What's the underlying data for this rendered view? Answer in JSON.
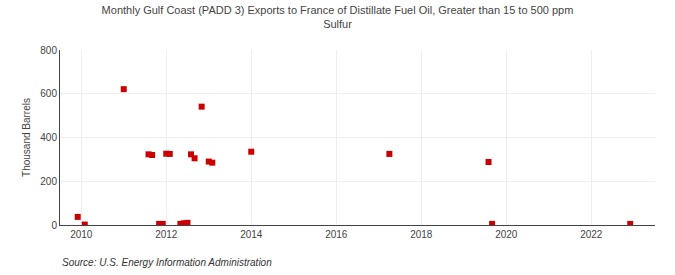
{
  "chart_data": {
    "type": "scatter",
    "title": "Monthly Gulf Coast (PADD 3) Exports to France of Distillate Fuel Oil, Greater than 15 to 500 ppm\nSulfur",
    "ylabel": "Thousand Barrels",
    "annotations": [
      "Source: U.S. Energy Information Administration"
    ],
    "x": [
      2009.917,
      2010.083,
      2011.0,
      2011.583,
      2011.667,
      2011.833,
      2011.917,
      2012.0,
      2012.083,
      2012.333,
      2012.417,
      2012.5,
      2012.583,
      2012.667,
      2012.833,
      2013.0,
      2013.083,
      2014.0,
      2017.25,
      2019.583,
      2019.667,
      2022.917
    ],
    "values": [
      37,
      2,
      621,
      323,
      320,
      5,
      5,
      326,
      325,
      5,
      8,
      10,
      323,
      305,
      541,
      290,
      285,
      335,
      325,
      288,
      5,
      5
    ],
    "color": "#cc0000",
    "marker": "square",
    "xlim": [
      2009.5,
      2023.5
    ],
    "ylim": [
      0,
      800
    ],
    "xticks": [
      2010,
      2012,
      2014,
      2016,
      2018,
      2020,
      2022
    ],
    "yticks": [
      0,
      200,
      400,
      600,
      800
    ],
    "grid": true
  }
}
